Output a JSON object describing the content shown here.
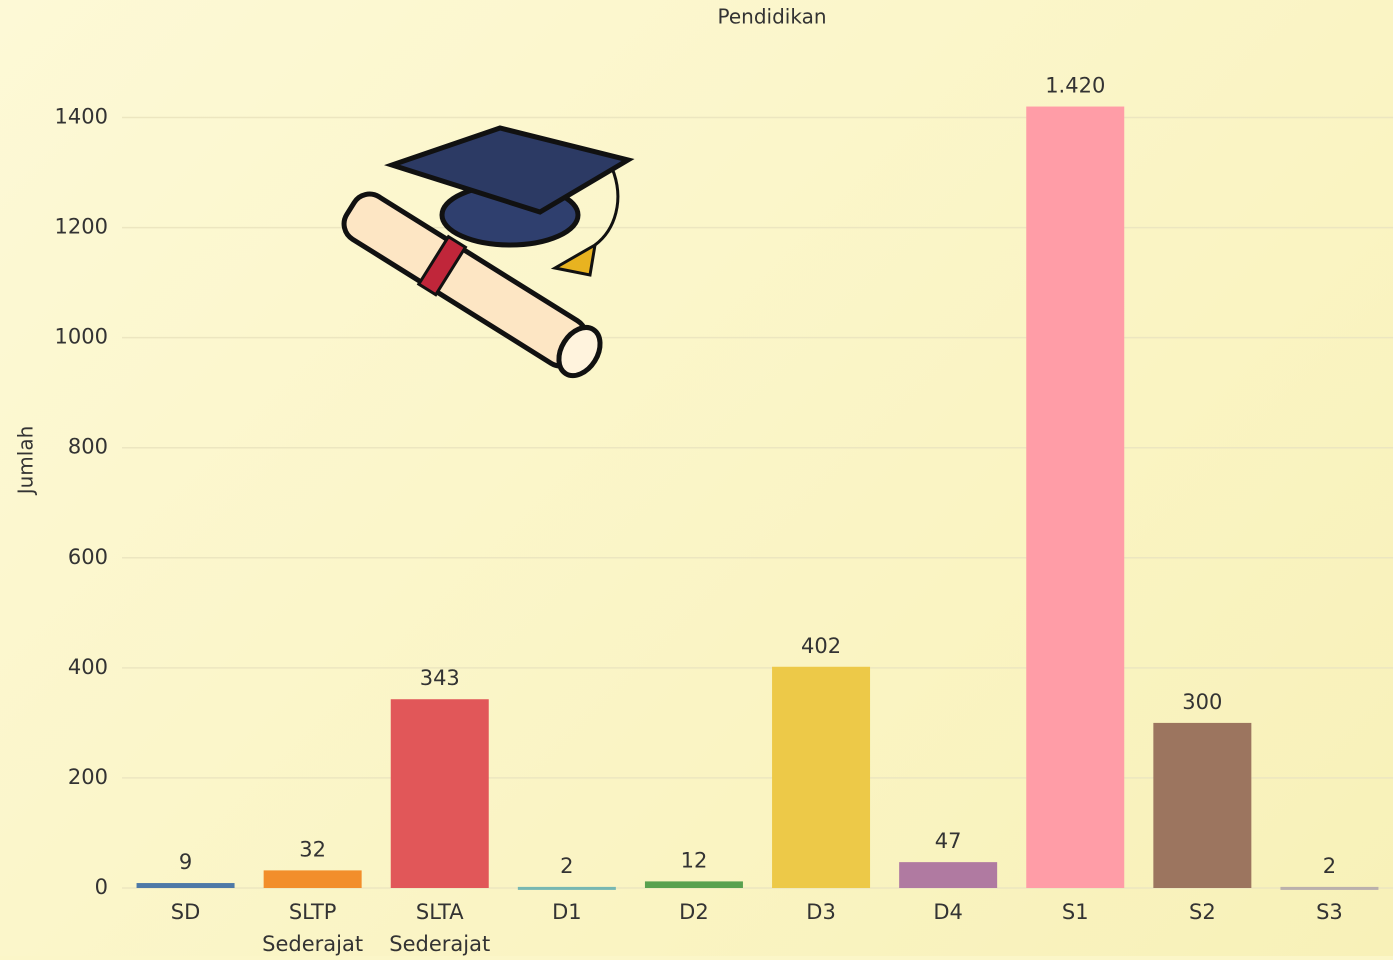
{
  "chart_data": {
    "type": "bar",
    "title": "Pendidikan",
    "y_label": "Jumlah",
    "categories": [
      "SD",
      "SLTP Sederajat",
      "SLTA Sederajat",
      "D1",
      "D2",
      "D3",
      "D4",
      "S1",
      "S2",
      "S3"
    ],
    "values": [
      9,
      32,
      343,
      2,
      12,
      402,
      47,
      1420,
      300,
      2
    ],
    "value_labels": [
      "9",
      "32",
      "343",
      "2",
      "12",
      "402",
      "47",
      "1.420",
      "300",
      "2"
    ],
    "colors": [
      "#4e79a7",
      "#f28e2b",
      "#e15759",
      "#76b7b2",
      "#59a14f",
      "#edc948",
      "#b07aa1",
      "#ff9da7",
      "#9c755f",
      "#bab0ac"
    ],
    "ylim": [
      0,
      1530
    ],
    "yticks": [
      0,
      200,
      400,
      600,
      800,
      1000,
      1200,
      1400
    ],
    "grid": true
  }
}
